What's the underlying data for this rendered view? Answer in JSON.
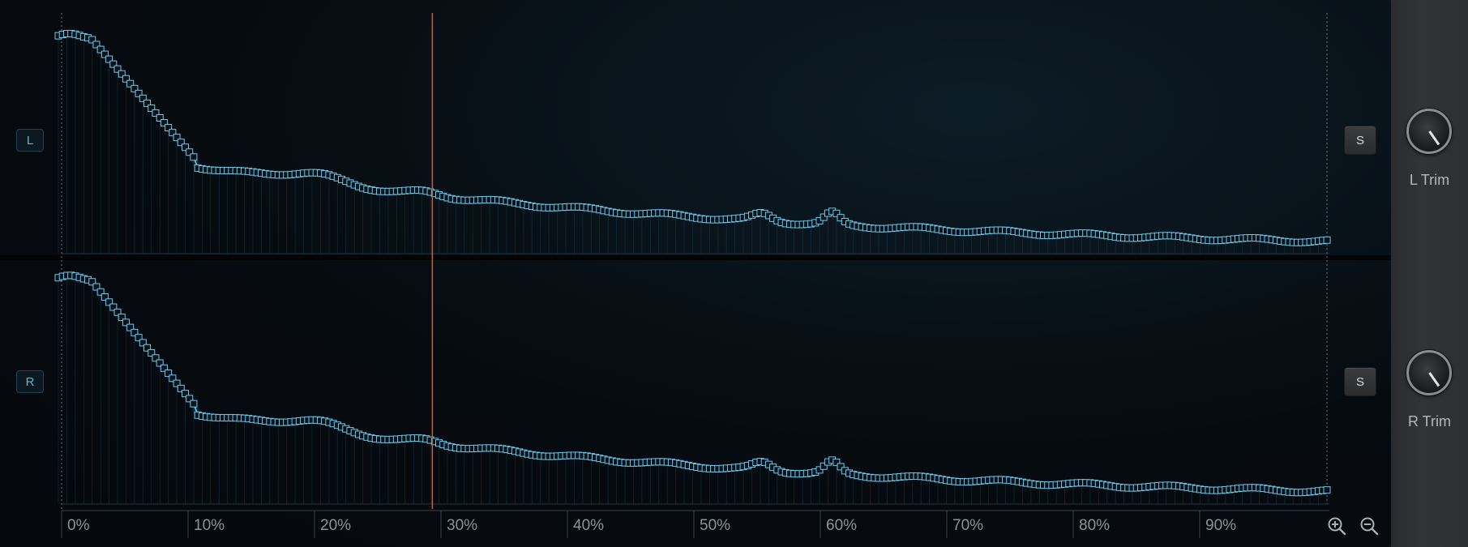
{
  "channels": {
    "left": {
      "label": "L",
      "solo_label": "S",
      "trim_label": "L Trim"
    },
    "right": {
      "label": "R",
      "solo_label": "S",
      "trim_label": "R Trim"
    }
  },
  "axis": {
    "ticks": [
      "0%",
      "10%",
      "20%",
      "30%",
      "40%",
      "50%",
      "60%",
      "70%",
      "80%",
      "90%"
    ]
  },
  "playhead_position_percent": 29.3,
  "zoom": {
    "in_icon": "zoom-in-icon",
    "out_icon": "zoom-out-icon"
  },
  "colors": {
    "curve": "#6cc6e8",
    "playhead": "#e8541f",
    "background": "#05080c"
  }
}
